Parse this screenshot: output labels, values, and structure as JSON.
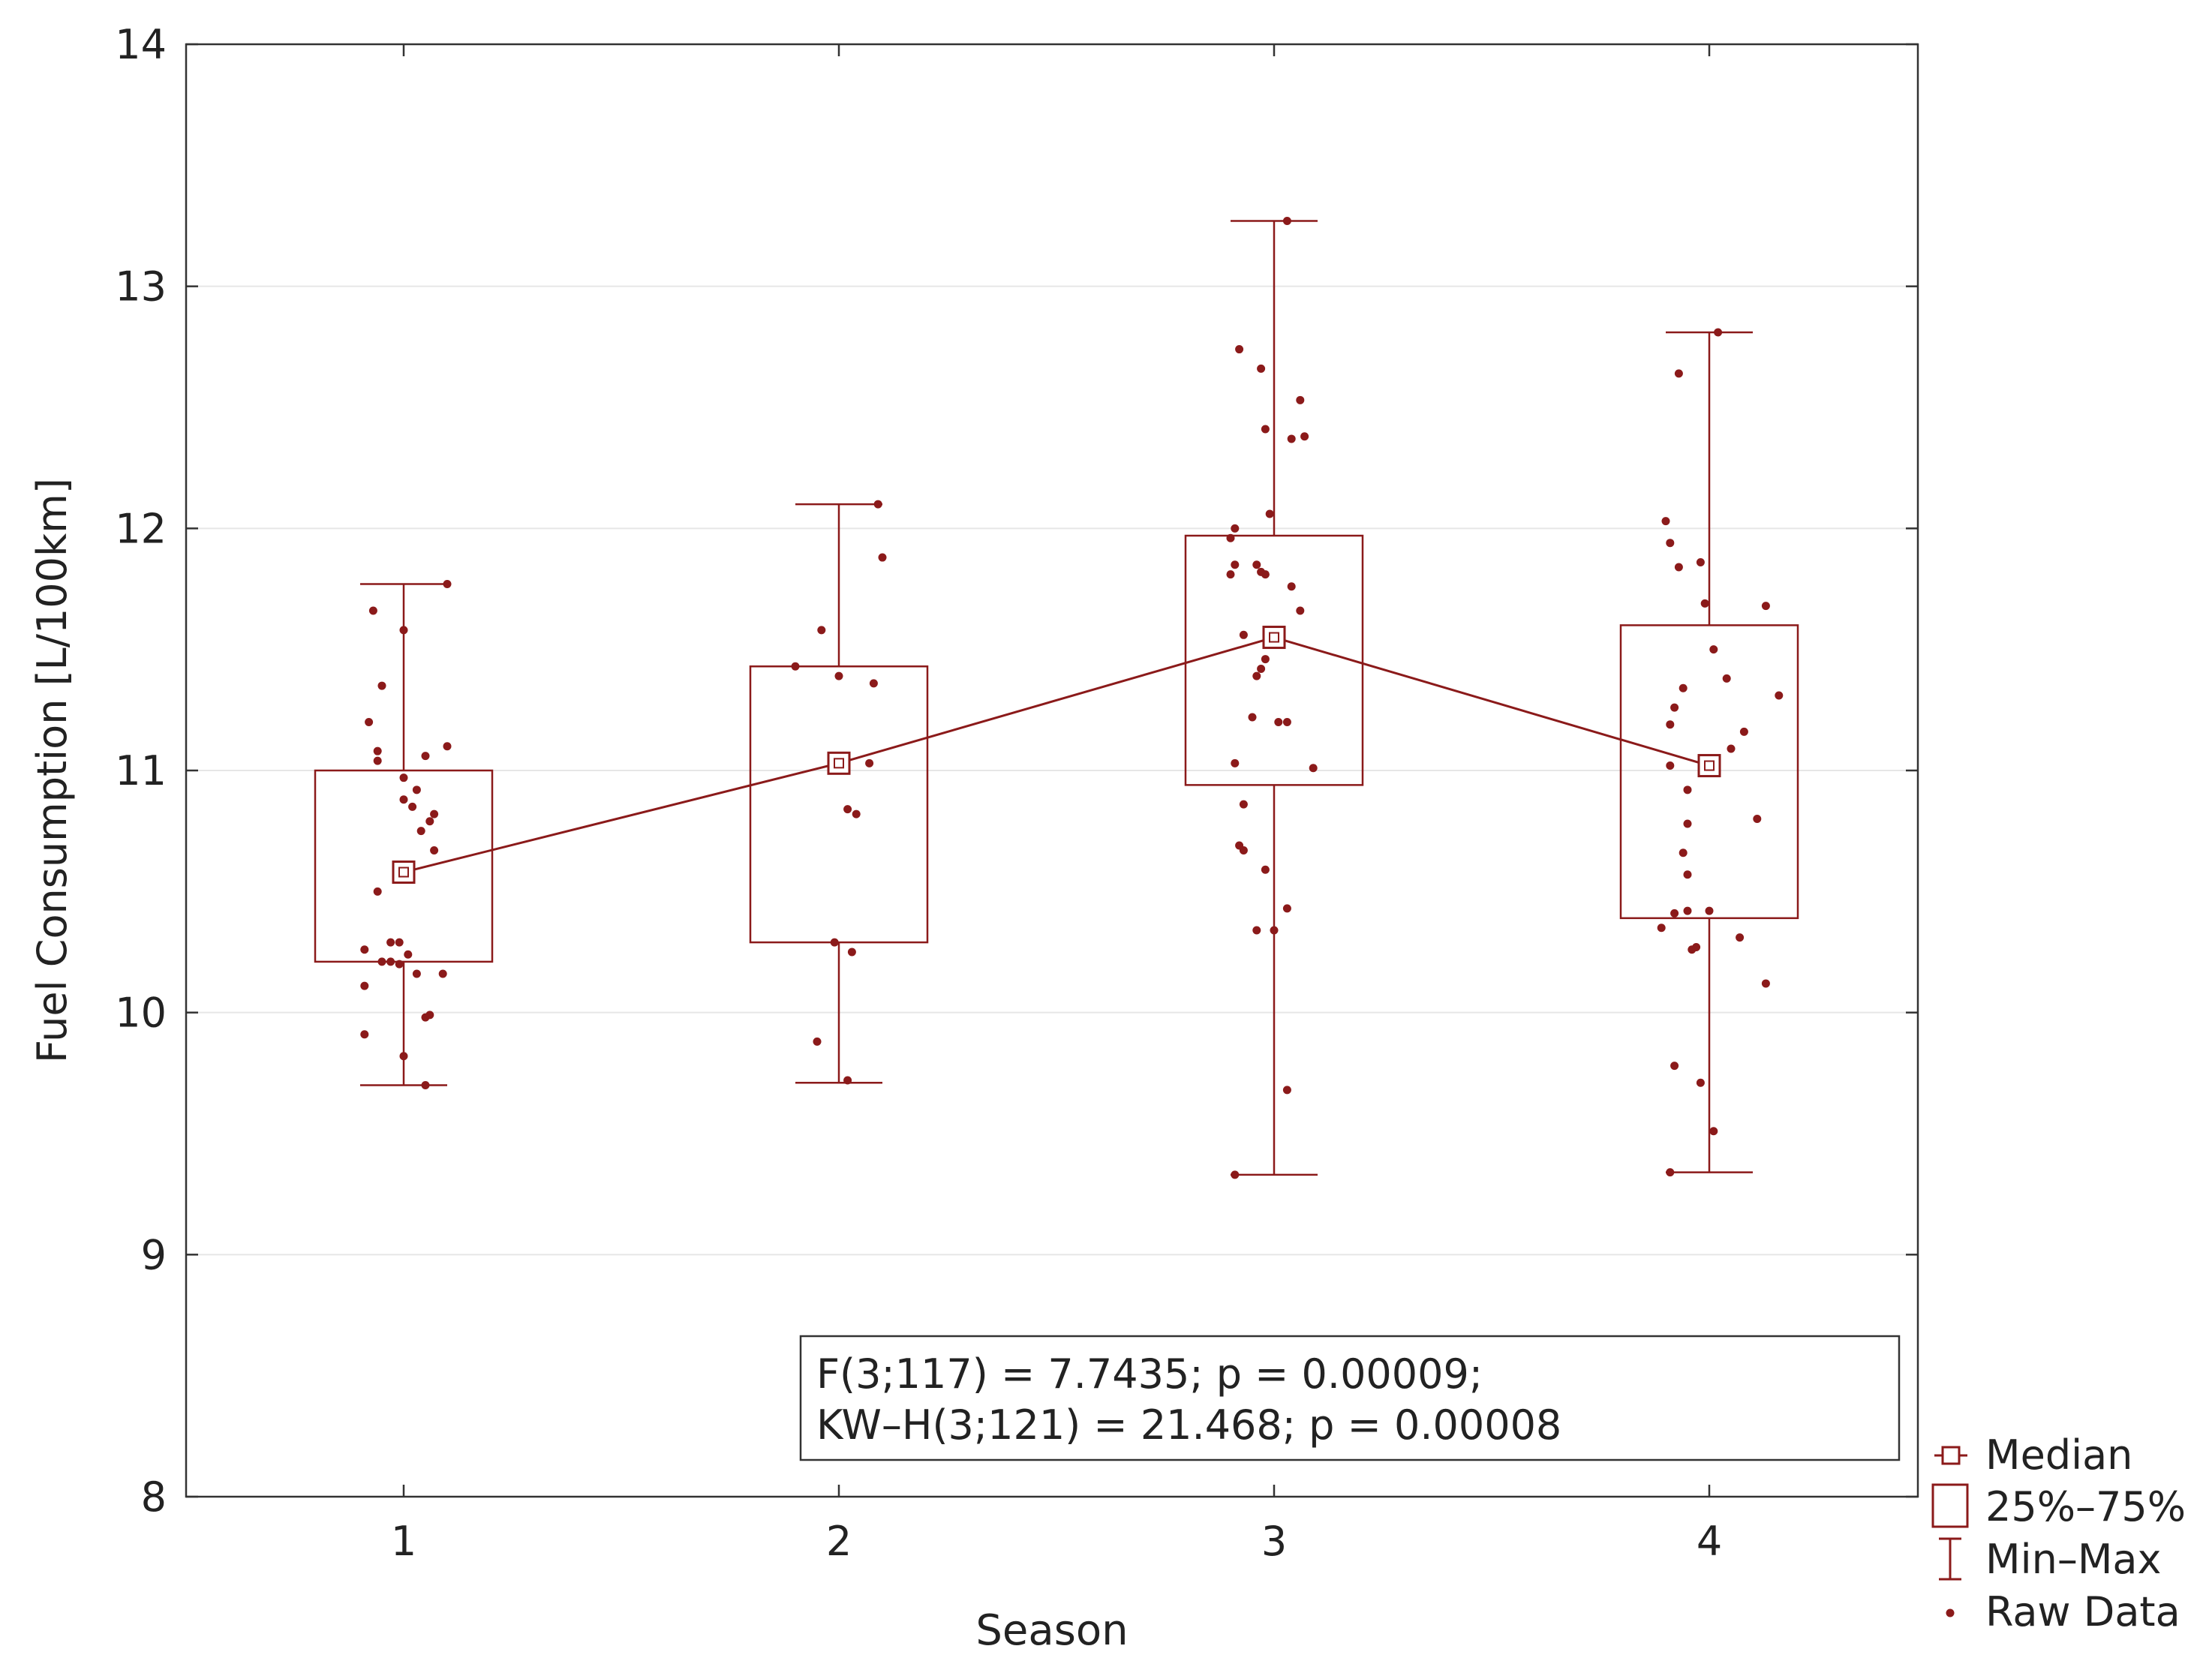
{
  "chart_data": {
    "type": "box",
    "xlabel": "Season",
    "ylabel": "Fuel Consumption [L/100km]",
    "ylim": [
      8,
      14
    ],
    "yticks": [
      8,
      9,
      10,
      11,
      12,
      13,
      14
    ],
    "categories": [
      "1",
      "2",
      "3",
      "4"
    ],
    "grid": "horizontal",
    "legend_position": "bottom-right, outside",
    "colors": {
      "series": "#8b1a1a",
      "frame": "#333333",
      "grid": "#e6e6e6"
    },
    "boxes": [
      {
        "category": "1",
        "median": 10.58,
        "q1": 10.21,
        "q3": 11.0,
        "min": 9.7,
        "max": 11.77
      },
      {
        "category": "2",
        "median": 11.03,
        "q1": 10.29,
        "q3": 11.43,
        "min": 9.71,
        "max": 12.1
      },
      {
        "category": "3",
        "median": 11.55,
        "q1": 10.94,
        "q3": 11.97,
        "min": 9.33,
        "max": 13.27
      },
      {
        "category": "4",
        "median": 11.02,
        "q1": 10.39,
        "q3": 11.6,
        "min": 9.34,
        "max": 12.81
      }
    ],
    "raw_data": [
      {
        "category": "1",
        "points": [
          {
            "dx": -0.07,
            "y": 11.66
          },
          {
            "dx": 0.0,
            "y": 11.58
          },
          {
            "dx": 0.1,
            "y": 11.77
          },
          {
            "dx": -0.05,
            "y": 11.35
          },
          {
            "dx": -0.08,
            "y": 11.2
          },
          {
            "dx": -0.06,
            "y": 11.08
          },
          {
            "dx": -0.06,
            "y": 11.04
          },
          {
            "dx": 0.1,
            "y": 11.1
          },
          {
            "dx": 0.05,
            "y": 11.06
          },
          {
            "dx": 0.0,
            "y": 10.97
          },
          {
            "dx": 0.03,
            "y": 10.92
          },
          {
            "dx": 0.0,
            "y": 10.88
          },
          {
            "dx": 0.02,
            "y": 10.85
          },
          {
            "dx": 0.07,
            "y": 10.82
          },
          {
            "dx": 0.06,
            "y": 10.79
          },
          {
            "dx": 0.04,
            "y": 10.75
          },
          {
            "dx": 0.07,
            "y": 10.67
          },
          {
            "dx": 0.0,
            "y": 10.58
          },
          {
            "dx": -0.06,
            "y": 10.5
          },
          {
            "dx": -0.03,
            "y": 10.29
          },
          {
            "dx": -0.01,
            "y": 10.29
          },
          {
            "dx": -0.09,
            "y": 10.26
          },
          {
            "dx": 0.01,
            "y": 10.24
          },
          {
            "dx": -0.05,
            "y": 10.21
          },
          {
            "dx": -0.03,
            "y": 10.21
          },
          {
            "dx": -0.01,
            "y": 10.2
          },
          {
            "dx": 0.03,
            "y": 10.16
          },
          {
            "dx": 0.09,
            "y": 10.16
          },
          {
            "dx": -0.09,
            "y": 10.11
          },
          {
            "dx": 0.05,
            "y": 9.98
          },
          {
            "dx": 0.06,
            "y": 9.99
          },
          {
            "dx": -0.09,
            "y": 9.91
          },
          {
            "dx": 0.0,
            "y": 9.82
          },
          {
            "dx": 0.05,
            "y": 9.7
          }
        ]
      },
      {
        "category": "2",
        "points": [
          {
            "dx": 0.09,
            "y": 12.1
          },
          {
            "dx": 0.1,
            "y": 11.88
          },
          {
            "dx": -0.04,
            "y": 11.58
          },
          {
            "dx": -0.1,
            "y": 11.43
          },
          {
            "dx": 0.0,
            "y": 11.39
          },
          {
            "dx": 0.08,
            "y": 11.36
          },
          {
            "dx": 0.07,
            "y": 11.03
          },
          {
            "dx": 0.02,
            "y": 10.84
          },
          {
            "dx": 0.04,
            "y": 10.82
          },
          {
            "dx": -0.01,
            "y": 10.29
          },
          {
            "dx": 0.03,
            "y": 10.25
          },
          {
            "dx": -0.05,
            "y": 9.88
          },
          {
            "dx": 0.02,
            "y": 9.72
          }
        ]
      },
      {
        "category": "3",
        "points": [
          {
            "dx": 0.03,
            "y": 13.27
          },
          {
            "dx": -0.08,
            "y": 12.74
          },
          {
            "dx": -0.03,
            "y": 12.66
          },
          {
            "dx": 0.06,
            "y": 12.53
          },
          {
            "dx": -0.02,
            "y": 12.41
          },
          {
            "dx": 0.04,
            "y": 12.37
          },
          {
            "dx": 0.07,
            "y": 12.38
          },
          {
            "dx": -0.01,
            "y": 12.06
          },
          {
            "dx": -0.09,
            "y": 12.0
          },
          {
            "dx": -0.1,
            "y": 11.96
          },
          {
            "dx": -0.09,
            "y": 11.85
          },
          {
            "dx": -0.04,
            "y": 11.85
          },
          {
            "dx": -0.03,
            "y": 11.82
          },
          {
            "dx": -0.1,
            "y": 11.81
          },
          {
            "dx": -0.02,
            "y": 11.81
          },
          {
            "dx": 0.04,
            "y": 11.76
          },
          {
            "dx": 0.06,
            "y": 11.66
          },
          {
            "dx": -0.07,
            "y": 11.56
          },
          {
            "dx": 0.0,
            "y": 11.55
          },
          {
            "dx": -0.02,
            "y": 11.46
          },
          {
            "dx": -0.03,
            "y": 11.42
          },
          {
            "dx": -0.04,
            "y": 11.39
          },
          {
            "dx": -0.05,
            "y": 11.22
          },
          {
            "dx": 0.01,
            "y": 11.2
          },
          {
            "dx": 0.03,
            "y": 11.2
          },
          {
            "dx": -0.09,
            "y": 11.03
          },
          {
            "dx": 0.09,
            "y": 11.01
          },
          {
            "dx": -0.07,
            "y": 10.86
          },
          {
            "dx": -0.08,
            "y": 10.69
          },
          {
            "dx": -0.07,
            "y": 10.67
          },
          {
            "dx": -0.02,
            "y": 10.59
          },
          {
            "dx": 0.03,
            "y": 10.43
          },
          {
            "dx": -0.04,
            "y": 10.34
          },
          {
            "dx": 0.0,
            "y": 10.34
          },
          {
            "dx": 0.03,
            "y": 9.68
          },
          {
            "dx": -0.09,
            "y": 9.33
          }
        ]
      },
      {
        "category": "4",
        "points": [
          {
            "dx": 0.02,
            "y": 12.81
          },
          {
            "dx": -0.07,
            "y": 12.64
          },
          {
            "dx": -0.1,
            "y": 12.03
          },
          {
            "dx": -0.09,
            "y": 11.94
          },
          {
            "dx": -0.02,
            "y": 11.86
          },
          {
            "dx": -0.07,
            "y": 11.84
          },
          {
            "dx": -0.01,
            "y": 11.69
          },
          {
            "dx": 0.13,
            "y": 11.68
          },
          {
            "dx": 0.01,
            "y": 11.5
          },
          {
            "dx": 0.04,
            "y": 11.38
          },
          {
            "dx": -0.06,
            "y": 11.34
          },
          {
            "dx": 0.16,
            "y": 11.31
          },
          {
            "dx": -0.08,
            "y": 11.26
          },
          {
            "dx": -0.09,
            "y": 11.19
          },
          {
            "dx": 0.08,
            "y": 11.16
          },
          {
            "dx": 0.05,
            "y": 11.09
          },
          {
            "dx": -0.09,
            "y": 11.02
          },
          {
            "dx": -0.05,
            "y": 10.92
          },
          {
            "dx": 0.11,
            "y": 10.8
          },
          {
            "dx": -0.05,
            "y": 10.78
          },
          {
            "dx": -0.06,
            "y": 10.66
          },
          {
            "dx": -0.05,
            "y": 10.57
          },
          {
            "dx": -0.08,
            "y": 10.41
          },
          {
            "dx": -0.05,
            "y": 10.42
          },
          {
            "dx": 0.0,
            "y": 10.42
          },
          {
            "dx": -0.11,
            "y": 10.35
          },
          {
            "dx": 0.07,
            "y": 10.31
          },
          {
            "dx": -0.04,
            "y": 10.26
          },
          {
            "dx": -0.03,
            "y": 10.27
          },
          {
            "dx": 0.13,
            "y": 10.12
          },
          {
            "dx": -0.08,
            "y": 9.78
          },
          {
            "dx": -0.02,
            "y": 9.71
          },
          {
            "dx": 0.01,
            "y": 9.51
          },
          {
            "dx": -0.09,
            "y": 9.34
          }
        ]
      }
    ],
    "annotation": [
      "F(3;117) = 7.7435; p = 0.00009;",
      "KW–H(3;121) = 21.468; p = 0.00008"
    ],
    "legend": [
      {
        "label": "Median",
        "symbol": "median-square-icon"
      },
      {
        "label": "25%–75%",
        "symbol": "box-icon"
      },
      {
        "label": "Min–Max",
        "symbol": "whisker-icon"
      },
      {
        "label": "Raw Data",
        "symbol": "dot-icon"
      }
    ]
  }
}
